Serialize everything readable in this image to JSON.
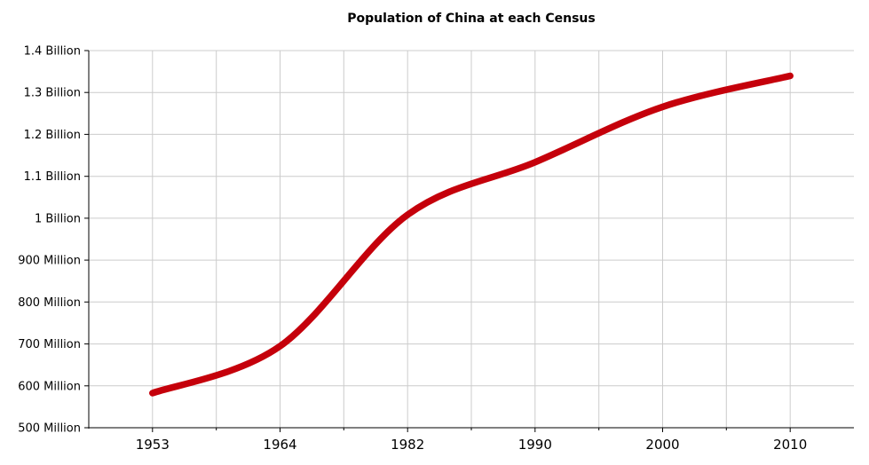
{
  "chart_data": {
    "type": "line",
    "title": "Population of China at each Census",
    "categories": [
      "1953",
      "1964",
      "1982",
      "1990",
      "2000",
      "2010"
    ],
    "series": [
      {
        "name": "Population of China",
        "values_millions": [
          582.6,
          694.6,
          1008.2,
          1133.7,
          1265.8,
          1339.7
        ]
      }
    ],
    "y_ticks": [
      {
        "value": 500,
        "label": "500 Million"
      },
      {
        "value": 600,
        "label": "600 Million"
      },
      {
        "value": 700,
        "label": "700 Million"
      },
      {
        "value": 800,
        "label": "800 Million"
      },
      {
        "value": 900,
        "label": "900 Million"
      },
      {
        "value": 1000,
        "label": "1 Billion"
      },
      {
        "value": 1100,
        "label": "1.1 Billion"
      },
      {
        "value": 1200,
        "label": "1.2 Billion"
      },
      {
        "value": 1300,
        "label": "1.3 Billion"
      },
      {
        "value": 1400,
        "label": "1.4 Billion"
      }
    ],
    "ylim_millions": [
      500,
      1400
    ],
    "grid": true,
    "legend": "none",
    "smooth": true,
    "colors": {
      "line": "#C5000B",
      "grid": "#cccccc",
      "axis": "#000000",
      "background": "#ffffff"
    }
  }
}
